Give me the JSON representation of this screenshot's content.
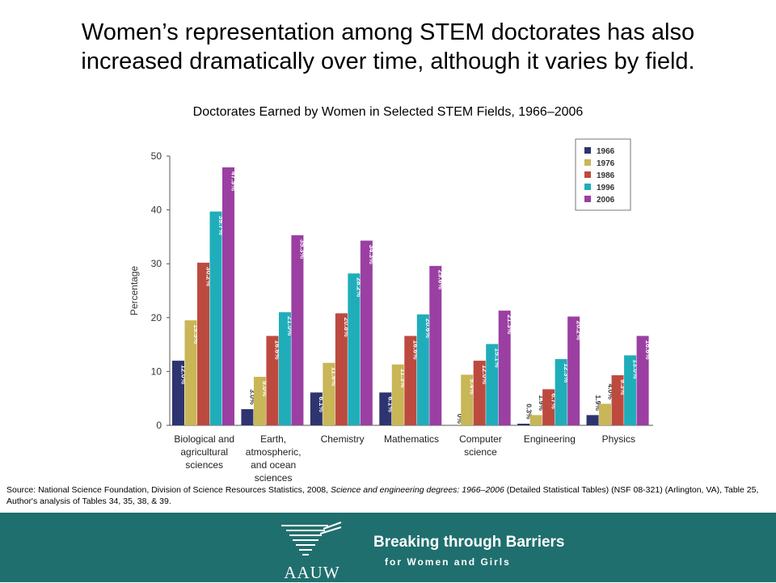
{
  "slide": {
    "headline_line1": "Women’s representation among STEM doctorates has also",
    "headline_line2": "increased dramatically over time, although it varies by field.",
    "source_part1": "Source: National Science Foundation, Division of Science Resources Statistics, 2008, ",
    "source_italic": "Science and engineering degrees: 1966–2006",
    "source_part2": " (Detailed Statistical Tables) (NSF 08-321) (Arlington, VA),  Table 25, Author's analysis of Tables 34, 35, 38, & 39."
  },
  "footer": {
    "logo_text": "AAUW",
    "tagline_line1": "Breaking through Barriers",
    "tagline_line2": "for Women and Girls",
    "background_color": "#1f6f6e"
  },
  "chart_data": {
    "type": "bar",
    "title": "Doctorates Earned by Women in Selected STEM Fields, 1966–2006",
    "xlabel": "",
    "ylabel": "Percentage",
    "ylim": [
      0,
      50
    ],
    "yticks": [
      0,
      10,
      20,
      30,
      40,
      50
    ],
    "grid": false,
    "legend_position": "top-right",
    "categories": [
      [
        "Biological and",
        "agricultural",
        "sciences"
      ],
      [
        "Earth,",
        "atmospheric,",
        "and ocean",
        "sciences"
      ],
      [
        "Chemistry"
      ],
      [
        "Mathematics"
      ],
      [
        "Computer",
        "science"
      ],
      [
        "Engineering"
      ],
      [
        "Physics"
      ]
    ],
    "series": [
      {
        "name": "1966",
        "color": "#2e3470",
        "values": [
          12.0,
          3.0,
          6.1,
          6.1,
          0,
          0.3,
          1.9
        ],
        "labels": [
          "12.0%",
          "3.0%",
          "6.1%",
          "6.1%",
          "0%",
          "0.3%",
          "1.9%"
        ]
      },
      {
        "name": "1976",
        "color": "#c8b657",
        "values": [
          19.5,
          9.0,
          11.6,
          11.3,
          9.4,
          1.9,
          4.0
        ],
        "labels": [
          "19.5%",
          "9.0%",
          "11.6%",
          "11.3%",
          "9.4%",
          "1.9%",
          "4.0%"
        ]
      },
      {
        "name": "1986",
        "color": "#bd4a3f",
        "values": [
          30.2,
          16.6,
          20.8,
          16.6,
          12.0,
          6.7,
          9.3
        ],
        "labels": [
          "30.2%",
          "16.6%",
          "20.8%",
          "16.6%",
          "12.0%",
          "6.7%",
          "9.3%"
        ]
      },
      {
        "name": "1996",
        "color": "#20adba",
        "values": [
          39.7,
          21.0,
          28.2,
          20.6,
          15.1,
          12.3,
          13.0
        ],
        "labels": [
          "39.7%",
          "21.0%",
          "28.2%",
          "20.6%",
          "15.1%",
          "12.3%",
          "13.0%"
        ]
      },
      {
        "name": "2006",
        "color": "#9b3fa3",
        "values": [
          47.9,
          35.3,
          34.3,
          29.6,
          21.3,
          20.2,
          16.6
        ],
        "labels": [
          "47.9%",
          "35.3%",
          "34.3%",
          "29.6%",
          "21.3%",
          "20.2%",
          "16.6%"
        ]
      }
    ]
  }
}
